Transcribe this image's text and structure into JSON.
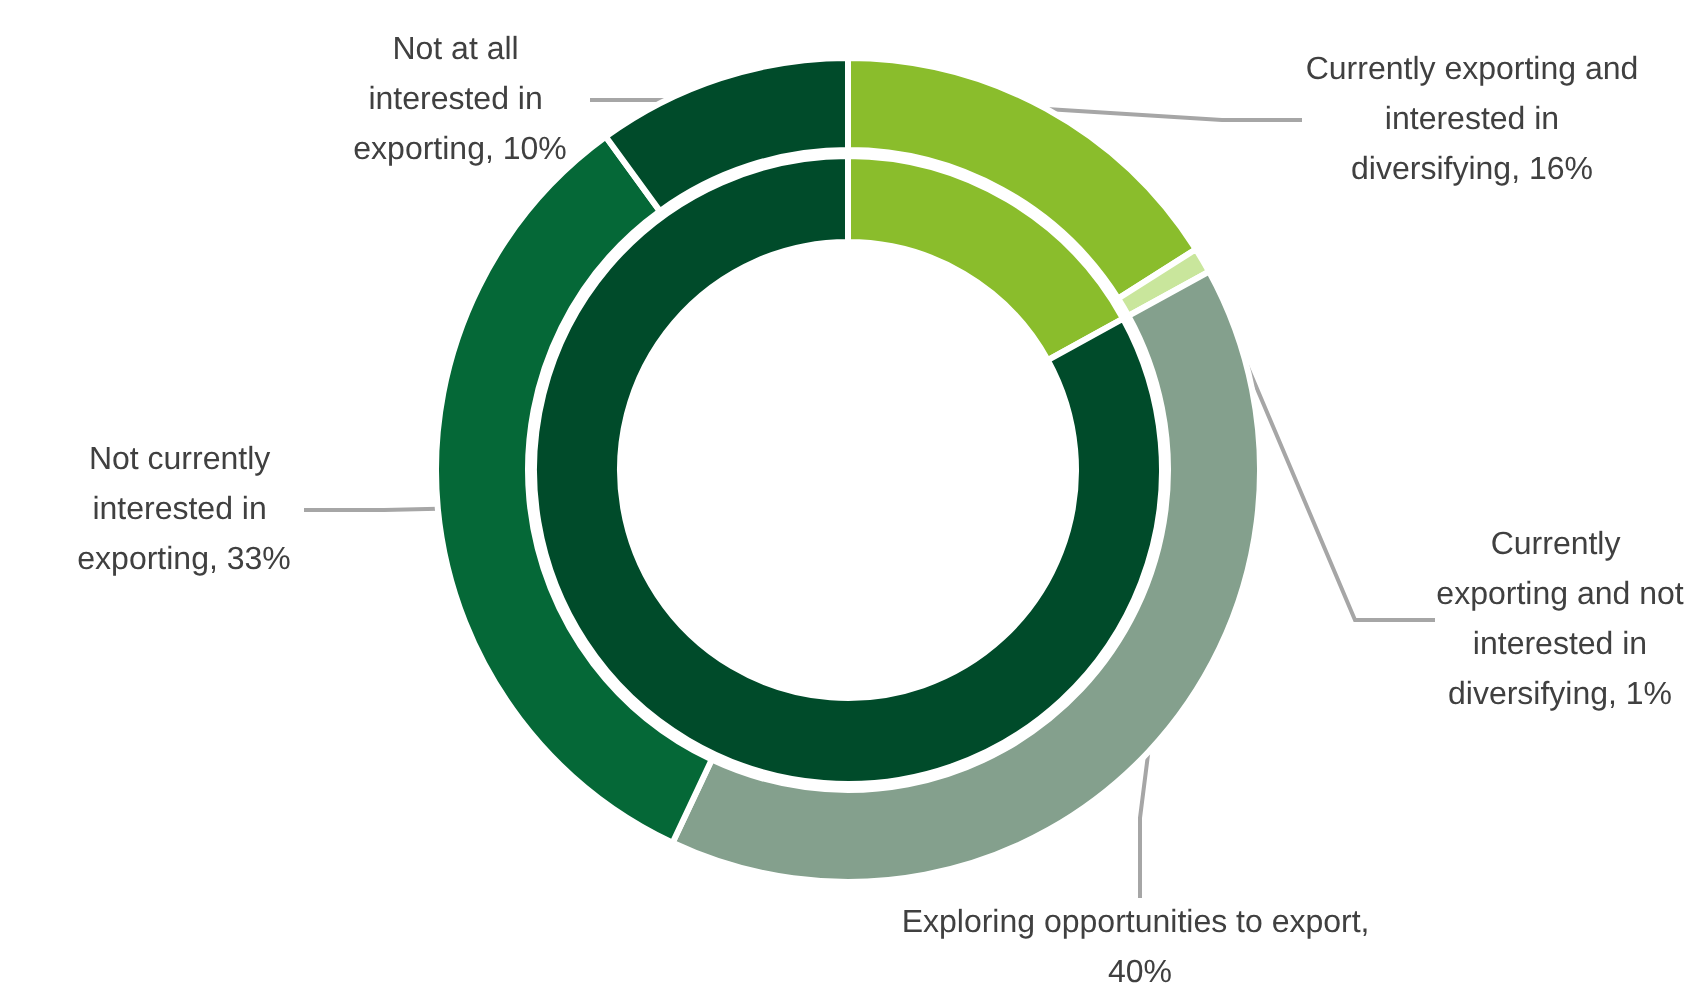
{
  "chart_data": [
    {
      "type": "donut",
      "categories": [
        "Currently exporting and interested in diversifying, 16%",
        "Currently exporting and not interested in diversifying, 1%",
        "Exploring opportunities to export, 40%",
        "Not currently interested in exporting, 33%",
        "Not at all interested in exporting, 10%"
      ],
      "values": [
        16,
        1,
        40,
        33,
        10
      ],
      "colors": [
        "#8abd2c",
        "#c9e69c",
        "#84a08d",
        "#056837",
        "#004b2a"
      ]
    },
    {
      "type": "donut",
      "categories": [
        null,
        null
      ],
      "values": [
        17,
        83
      ],
      "colors": [
        "#8abd2c",
        "#004b2a"
      ]
    }
  ]
}
